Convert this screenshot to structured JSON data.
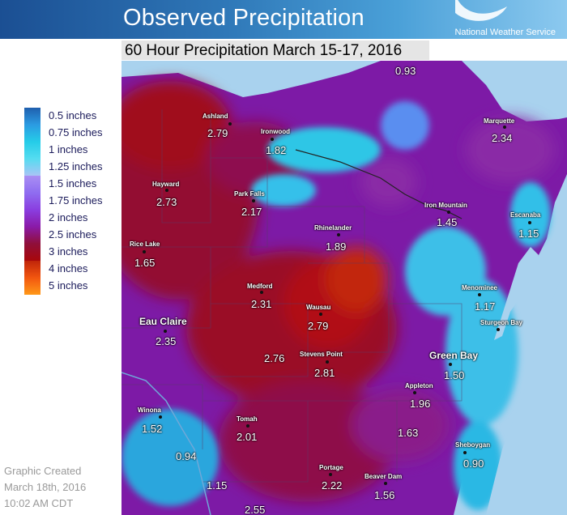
{
  "header": {
    "title": "Observed Precipitation",
    "agency": "National Weather Service",
    "subtitle": "60 Hour Precipitation March 15-17, 2016"
  },
  "legend": {
    "items": [
      {
        "label": "0.5 inches",
        "color": "#1f5fae"
      },
      {
        "label": "0.75 inches",
        "color": "#2b9be2"
      },
      {
        "label": "1 inches",
        "color": "#25cce8"
      },
      {
        "label": "1.25 inches",
        "color": "#55dcf0"
      },
      {
        "label": "1.5 inches",
        "color": "#8f6df0"
      },
      {
        "label": "1.75 inches",
        "color": "#8a3ee0"
      },
      {
        "label": "2 inches",
        "color": "#8a1aa8"
      },
      {
        "label": "2.5 inches",
        "color": "#8f0f3a"
      },
      {
        "label": "3 inches",
        "color": "#a8070a"
      },
      {
        "label": "4 inches",
        "color": "#f2560f"
      },
      {
        "label": "5 inches",
        "color": "#ff9918"
      }
    ]
  },
  "credit": {
    "line1": "Graphic Created",
    "line2": "March 18th, 2016",
    "line3": "10:02 AM CDT"
  },
  "map": {
    "lake_color": "#a9d2ee",
    "stations": [
      {
        "name": "Ashland",
        "value": "2.79"
      },
      {
        "name": "Ironwood",
        "value": "1.82"
      },
      {
        "name": "Marquette",
        "value": "2.34"
      },
      {
        "name": "Hayward",
        "value": "2.73"
      },
      {
        "name": "Park Falls",
        "value": "2.17"
      },
      {
        "name": "Iron Mountain",
        "value": "1.45"
      },
      {
        "name": "Escanaba",
        "value": "1.15"
      },
      {
        "name": "Rhinelander",
        "value": "1.89"
      },
      {
        "name": "Rice Lake",
        "value": "1.65"
      },
      {
        "name": "Medford",
        "value": "2.31"
      },
      {
        "name": "Menominee",
        "value": "1.17"
      },
      {
        "name": "Wausau",
        "value": "2.79"
      },
      {
        "name": "Sturgeon Bay",
        "value": ""
      },
      {
        "name": "Eau Claire",
        "value": "2.35"
      },
      {
        "name": "Stevens Point",
        "value": "2.81"
      },
      {
        "name": "Green Bay",
        "value": "1.50"
      },
      {
        "name": "Appleton",
        "value": "1.96"
      },
      {
        "name": "Winona",
        "value": "1.52"
      },
      {
        "name": "Tomah",
        "value": "2.01"
      },
      {
        "name": "Sheboygan",
        "value": "0.90"
      },
      {
        "name": "Portage",
        "value": "2.22"
      },
      {
        "name": "Beaver Dam",
        "value": "1.56"
      }
    ],
    "extra_values": [
      "0.93",
      "2.76",
      "1.63",
      "0.94",
      "1.15",
      "2.55"
    ]
  }
}
